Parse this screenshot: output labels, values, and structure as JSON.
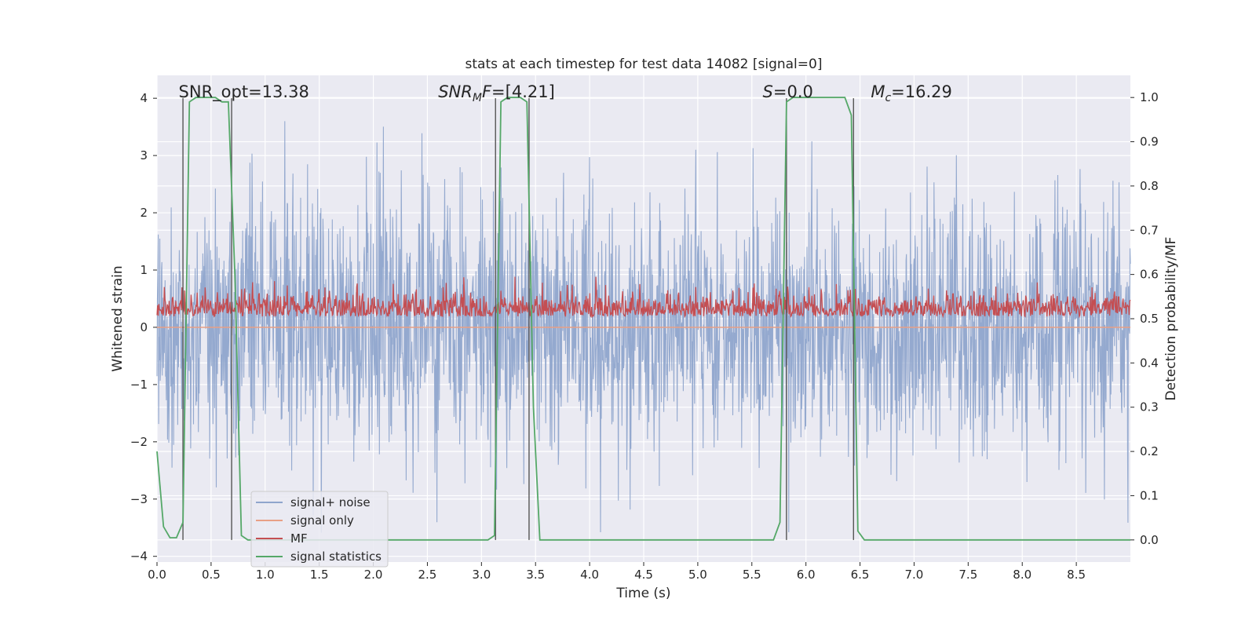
{
  "chart_data": {
    "type": "line",
    "title": "stats at each timestep for test data 14082 [signal=0]",
    "xlabel": "Time (s)",
    "ylabel": "Whitened strain",
    "y2label": "Detection probability/MF",
    "xlim": [
      0,
      9
    ],
    "ylim": [
      -4.1,
      4.4
    ],
    "y2lim": [
      -0.05,
      1.05
    ],
    "xticks": [
      0.0,
      0.5,
      1.0,
      1.5,
      2.0,
      2.5,
      3.0,
      3.5,
      4.0,
      4.5,
      5.0,
      5.5,
      6.0,
      6.5,
      7.0,
      7.5,
      8.0,
      8.5
    ],
    "yticks": [
      -4,
      -3,
      -2,
      -1,
      0,
      1,
      2,
      3,
      4
    ],
    "y2ticks": [
      0.0,
      0.1,
      0.2,
      0.3,
      0.4,
      0.5,
      0.6,
      0.7,
      0.8,
      0.9,
      1.0
    ],
    "grid": true,
    "legend_position": "lower-left",
    "annotations": [
      {
        "x": 0.2,
        "text_plain": "SNR_opt=13.38",
        "italic_part": "",
        "sub": "",
        "rest": ""
      },
      {
        "x": 2.6,
        "italic_part": "SNR",
        "sub": "M",
        "italic_after_sub": "F",
        "rest": "=[4.21]"
      },
      {
        "x": 5.6,
        "italic_part": "S",
        "sub": "",
        "italic_after_sub": "",
        "rest": "=0.0"
      },
      {
        "x": 6.6,
        "italic_part": "M",
        "sub": "c",
        "italic_after_sub": "",
        "rest": "=16.29"
      }
    ],
    "vlines": [
      0.24,
      0.69,
      3.13,
      3.44,
      5.82,
      6.44
    ],
    "series": [
      {
        "name": "signal+ noise",
        "color": "#8fa5cc",
        "kind": "noise",
        "amplitude": 1.1,
        "axis": "left"
      },
      {
        "name": "signal only",
        "color": "#e8a085",
        "kind": "flat",
        "value": 0.0,
        "axis": "left"
      },
      {
        "name": "MF",
        "color": "#c44e52",
        "kind": "mf",
        "axis": "right"
      },
      {
        "name": "signal statistics",
        "color": "#55a868",
        "axis": "right",
        "x": [
          0.0,
          0.06,
          0.12,
          0.18,
          0.24,
          0.3,
          0.36,
          0.42,
          0.48,
          0.54,
          0.6,
          0.66,
          0.72,
          0.78,
          0.84,
          3.0,
          3.06,
          3.12,
          3.18,
          3.24,
          3.3,
          3.36,
          3.42,
          3.48,
          3.54,
          3.6,
          5.7,
          5.76,
          5.82,
          5.88,
          5.94,
          6.3,
          6.36,
          6.42,
          6.48,
          6.54,
          6.6,
          9.0
        ],
        "y": [
          0.2,
          0.03,
          0.005,
          0.005,
          0.04,
          0.99,
          1.0,
          1.0,
          1.0,
          1.0,
          0.99,
          0.99,
          0.6,
          0.01,
          0.0,
          0.0,
          0.0,
          0.01,
          0.99,
          1.0,
          1.0,
          1.0,
          0.99,
          0.3,
          0.0,
          0.0,
          0.0,
          0.04,
          0.99,
          1.0,
          1.0,
          1.0,
          1.0,
          0.96,
          0.02,
          0.0,
          0.0,
          0.0
        ]
      }
    ]
  }
}
